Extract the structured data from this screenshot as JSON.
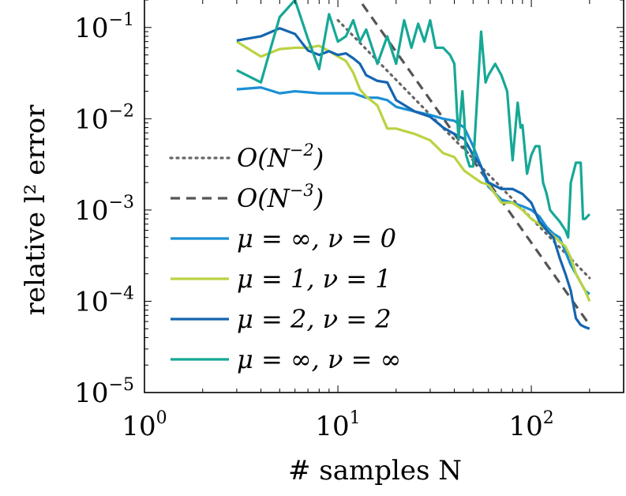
{
  "chart_data": {
    "type": "line",
    "x_scale": "log",
    "y_scale": "log",
    "xlim": [
      1,
      300
    ],
    "ylim": [
      1e-05,
      0.2
    ],
    "xlabel": "# samples N",
    "ylabel": "relative l² error",
    "grid": false,
    "legend_placement": "bottom-left",
    "x_ticks": [
      {
        "value": 1,
        "base": "10",
        "exp": "0"
      },
      {
        "value": 10,
        "base": "10",
        "exp": "1"
      },
      {
        "value": 100,
        "base": "10",
        "exp": "2"
      }
    ],
    "y_ticks": [
      {
        "value": 1e-05,
        "base": "10",
        "exp": "−5"
      },
      {
        "value": 0.0001,
        "base": "10",
        "exp": "−4"
      },
      {
        "value": 0.001,
        "base": "10",
        "exp": "−3"
      },
      {
        "value": 0.01,
        "base": "10",
        "exp": "−2"
      },
      {
        "value": 0.1,
        "base": "10",
        "exp": "−1"
      }
    ],
    "series": [
      {
        "name": "O(N⁻²)",
        "color": "#666666",
        "style": "dotted",
        "points": [
          [
            10,
            0.12
          ],
          [
            200,
            0.00018
          ]
        ]
      },
      {
        "name": "O(N⁻³)",
        "color": "#555555",
        "style": "dashed",
        "points": [
          [
            12,
            0.25
          ],
          [
            200,
            5.5e-05
          ]
        ]
      },
      {
        "name": "μ = ∞, ν = 0",
        "color": "#1b8fd4",
        "style": "solid",
        "points": [
          [
            3,
            0.021
          ],
          [
            4,
            0.022
          ],
          [
            5,
            0.019
          ],
          [
            6,
            0.02
          ],
          [
            8,
            0.019
          ],
          [
            10,
            0.019
          ],
          [
            12,
            0.019
          ],
          [
            14,
            0.017
          ],
          [
            16,
            0.017
          ],
          [
            18,
            0.016
          ],
          [
            20,
            0.0135
          ],
          [
            25,
            0.012
          ],
          [
            30,
            0.011
          ],
          [
            35,
            0.01
          ],
          [
            40,
            0.0095
          ],
          [
            45,
            0.008
          ],
          [
            50,
            0.005
          ],
          [
            55,
            0.003
          ],
          [
            60,
            0.0018
          ],
          [
            70,
            0.0013
          ],
          [
            80,
            0.0012
          ],
          [
            90,
            0.0011
          ],
          [
            100,
            0.001
          ],
          [
            110,
            0.00085
          ],
          [
            120,
            0.00065
          ],
          [
            130,
            0.00055
          ],
          [
            140,
            0.0005
          ],
          [
            150,
            0.00035
          ],
          [
            160,
            0.00025
          ],
          [
            170,
            0.0002
          ],
          [
            180,
            0.00016
          ],
          [
            190,
            0.00013
          ],
          [
            200,
            0.00012
          ]
        ]
      },
      {
        "name": "μ = 1, ν = 1",
        "color": "#b9d342",
        "style": "solid",
        "points": [
          [
            3,
            0.07
          ],
          [
            4,
            0.048
          ],
          [
            5,
            0.058
          ],
          [
            6,
            0.06
          ],
          [
            7,
            0.06
          ],
          [
            8,
            0.063
          ],
          [
            9,
            0.055
          ],
          [
            10,
            0.048
          ],
          [
            11,
            0.043
          ],
          [
            12,
            0.032
          ],
          [
            13,
            0.021
          ],
          [
            14,
            0.0175
          ],
          [
            16,
            0.014
          ],
          [
            18,
            0.0078
          ],
          [
            20,
            0.0078
          ],
          [
            25,
            0.0068
          ],
          [
            30,
            0.0058
          ],
          [
            35,
            0.0042
          ],
          [
            40,
            0.0038
          ],
          [
            45,
            0.0027
          ],
          [
            50,
            0.0023
          ],
          [
            55,
            0.002
          ],
          [
            60,
            0.0019
          ],
          [
            70,
            0.0012
          ],
          [
            80,
            0.0012
          ],
          [
            90,
            0.001
          ],
          [
            100,
            0.0008
          ],
          [
            110,
            0.0007
          ],
          [
            120,
            0.0006
          ],
          [
            130,
            0.00052
          ],
          [
            140,
            0.00045
          ],
          [
            150,
            0.0004
          ],
          [
            160,
            0.0003
          ],
          [
            170,
            0.0002
          ],
          [
            180,
            0.00016
          ],
          [
            190,
            0.00013
          ],
          [
            200,
            0.0001
          ]
        ]
      },
      {
        "name": "μ = 2, ν = 2",
        "color": "#1565b0",
        "style": "solid",
        "points": [
          [
            3,
            0.072
          ],
          [
            4,
            0.08
          ],
          [
            5,
            0.098
          ],
          [
            6,
            0.085
          ],
          [
            7,
            0.056
          ],
          [
            8,
            0.05
          ],
          [
            9,
            0.055
          ],
          [
            10,
            0.05
          ],
          [
            11,
            0.052
          ],
          [
            12,
            0.046
          ],
          [
            13,
            0.04
          ],
          [
            14,
            0.03
          ],
          [
            16,
            0.026
          ],
          [
            18,
            0.025
          ],
          [
            20,
            0.016
          ],
          [
            25,
            0.012
          ],
          [
            30,
            0.0105
          ],
          [
            35,
            0.008
          ],
          [
            40,
            0.0068
          ],
          [
            45,
            0.006
          ],
          [
            50,
            0.004
          ],
          [
            55,
            0.003
          ],
          [
            60,
            0.002
          ],
          [
            70,
            0.0017
          ],
          [
            80,
            0.0017
          ],
          [
            90,
            0.0015
          ],
          [
            100,
            0.0012
          ],
          [
            110,
            0.00075
          ],
          [
            120,
            0.0006
          ],
          [
            130,
            0.0005
          ],
          [
            140,
            0.0003
          ],
          [
            150,
            0.0002
          ],
          [
            160,
            0.00013
          ],
          [
            170,
            6.5e-05
          ],
          [
            180,
            5.5e-05
          ],
          [
            190,
            5.2e-05
          ],
          [
            200,
            5e-05
          ]
        ]
      },
      {
        "name": "μ = ∞, ν = ∞",
        "color": "#16a896",
        "style": "solid",
        "points": [
          [
            3,
            0.034
          ],
          [
            4,
            0.025
          ],
          [
            4.5,
            0.06
          ],
          [
            5,
            0.13
          ],
          [
            6,
            0.2
          ],
          [
            7,
            0.075
          ],
          [
            8,
            0.035
          ],
          [
            9,
            0.14
          ],
          [
            10,
            0.07
          ],
          [
            11,
            0.08
          ],
          [
            12,
            0.12
          ],
          [
            13,
            0.07
          ],
          [
            14,
            0.095
          ],
          [
            16,
            0.04
          ],
          [
            18,
            0.08
          ],
          [
            20,
            0.04
          ],
          [
            22,
            0.12
          ],
          [
            24,
            0.06
          ],
          [
            26,
            0.11
          ],
          [
            28,
            0.07
          ],
          [
            30,
            0.12
          ],
          [
            32,
            0.06
          ],
          [
            35,
            0.06
          ],
          [
            38,
            0.05
          ],
          [
            40,
            0.04
          ],
          [
            42,
            0.006
          ],
          [
            44,
            0.02
          ],
          [
            45,
            0.01
          ],
          [
            46,
            0.004
          ],
          [
            48,
            0.003
          ],
          [
            50,
            0.003
          ],
          [
            55,
            0.09
          ],
          [
            58,
            0.025
          ],
          [
            60,
            0.03
          ],
          [
            65,
            0.04
          ],
          [
            70,
            0.03
          ],
          [
            75,
            0.02
          ],
          [
            80,
            0.0035
          ],
          [
            85,
            0.015
          ],
          [
            88,
            0.008
          ],
          [
            90,
            0.0085
          ],
          [
            95,
            0.0025
          ],
          [
            100,
            0.004
          ],
          [
            105,
            0.005
          ],
          [
            110,
            0.005
          ],
          [
            115,
            0.002
          ],
          [
            120,
            0.0015
          ],
          [
            125,
            0.001
          ],
          [
            130,
            0.0009
          ],
          [
            140,
            0.00075
          ],
          [
            150,
            0.0006
          ],
          [
            155,
            0.0005
          ],
          [
            160,
            0.002
          ],
          [
            170,
            0.0033
          ],
          [
            180,
            0.0033
          ],
          [
            185,
            0.0008
          ],
          [
            190,
            0.0008
          ],
          [
            195,
            0.00085
          ],
          [
            200,
            0.0009
          ]
        ]
      }
    ],
    "legend": [
      {
        "series": 0,
        "label_main": "O(N",
        "label_sup": "−2",
        "label_end": ")"
      },
      {
        "series": 1,
        "label_main": "O(N",
        "label_sup": "−3",
        "label_end": ")"
      },
      {
        "series": 2,
        "label_main": "μ = ∞, ν = 0"
      },
      {
        "series": 3,
        "label_main": "μ = 1, ν = 1"
      },
      {
        "series": 4,
        "label_main": "μ = 2, ν = 2"
      },
      {
        "series": 5,
        "label_main": "μ = ∞, ν = ∞"
      }
    ]
  }
}
